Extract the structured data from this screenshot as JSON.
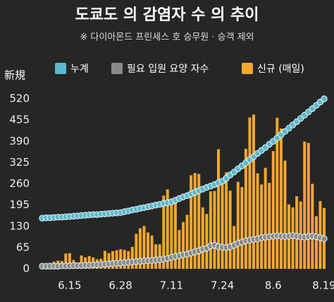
{
  "chart_data": {
    "type": "bar",
    "title": "도쿄도 의 감염자 수 의 추이",
    "subtitle": "※ 다이아몬드 프린세스 호 승무원 · 승객 제외",
    "y_label": "新規",
    "categories": [
      null,
      null,
      null,
      null,
      null,
      null,
      null,
      "6.15",
      null,
      null,
      null,
      null,
      null,
      null,
      null,
      null,
      null,
      null,
      null,
      null,
      "6.28",
      null,
      null,
      null,
      null,
      null,
      null,
      null,
      null,
      null,
      null,
      null,
      null,
      "7.11",
      null,
      null,
      null,
      null,
      null,
      null,
      null,
      null,
      null,
      null,
      null,
      null,
      "7.24",
      null,
      null,
      null,
      null,
      null,
      null,
      null,
      null,
      null,
      null,
      null,
      null,
      "8.6",
      null,
      null,
      null,
      null,
      null,
      null,
      null,
      null,
      null,
      null,
      null,
      null,
      "8.19"
    ],
    "series": [
      {
        "name": "누계",
        "type": "line",
        "color": "#5bb8cc",
        "values": [
          155,
          156,
          156,
          157,
          158,
          158,
          159,
          160,
          161,
          162,
          163,
          164,
          165,
          166,
          166,
          167,
          168,
          169,
          170,
          171,
          172,
          175,
          177,
          180,
          182,
          185,
          187,
          190,
          192,
          195,
          197,
          200,
          202,
          205,
          210,
          215,
          220,
          224,
          229,
          234,
          239,
          244,
          249,
          253,
          258,
          263,
          268,
          277,
          287,
          296,
          306,
          315,
          324,
          334,
          343,
          353,
          362,
          371,
          381,
          390,
          400,
          410,
          420,
          430,
          440,
          450,
          460,
          470,
          480,
          490,
          500,
          510,
          520
        ]
      },
      {
        "name": "필요 입원 요양 자수",
        "type": "line",
        "color": "#8a8a8a",
        "values": [
          8,
          8,
          8,
          8,
          8,
          9,
          9,
          9,
          10,
          10,
          10,
          11,
          11,
          12,
          12,
          13,
          14,
          15,
          16,
          17,
          18,
          19,
          20,
          21,
          22,
          23,
          24,
          25,
          26,
          27,
          28,
          30,
          32,
          35,
          38,
          40,
          43,
          45,
          48,
          52,
          55,
          60,
          63,
          70,
          72,
          68,
          66,
          65,
          68,
          72,
          78,
          82,
          86,
          88,
          90,
          92,
          95,
          97,
          98,
          100,
          101,
          100,
          99,
          100,
          102,
          100,
          98,
          97,
          99,
          100,
          98,
          95,
          92
        ]
      },
      {
        "name": "신규 (매일)",
        "type": "bar",
        "color": "#f0a830",
        "values": [
          13,
          12,
          18,
          22,
          25,
          24,
          47,
          48,
          27,
          16,
          41,
          35,
          39,
          35,
          29,
          31,
          55,
          48,
          54,
          57,
          60,
          58,
          54,
          67,
          107,
          124,
          131,
          111,
          102,
          75,
          75,
          224,
          243,
          206,
          206,
          119,
          143,
          165,
          286,
          293,
          290,
          188,
          168,
          237,
          238,
          366,
          260,
          295,
          239,
          131,
          266,
          250,
          367,
          463,
          472,
          292,
          258,
          309,
          263,
          360,
          462,
          429,
          331,
          197,
          188,
          222,
          206,
          389,
          385,
          260,
          161,
          207,
          186
        ]
      }
    ],
    "ylim": [
      0,
      520
    ],
    "yticks": [
      0,
      65,
      130,
      195,
      260,
      325,
      390,
      455,
      520
    ]
  }
}
